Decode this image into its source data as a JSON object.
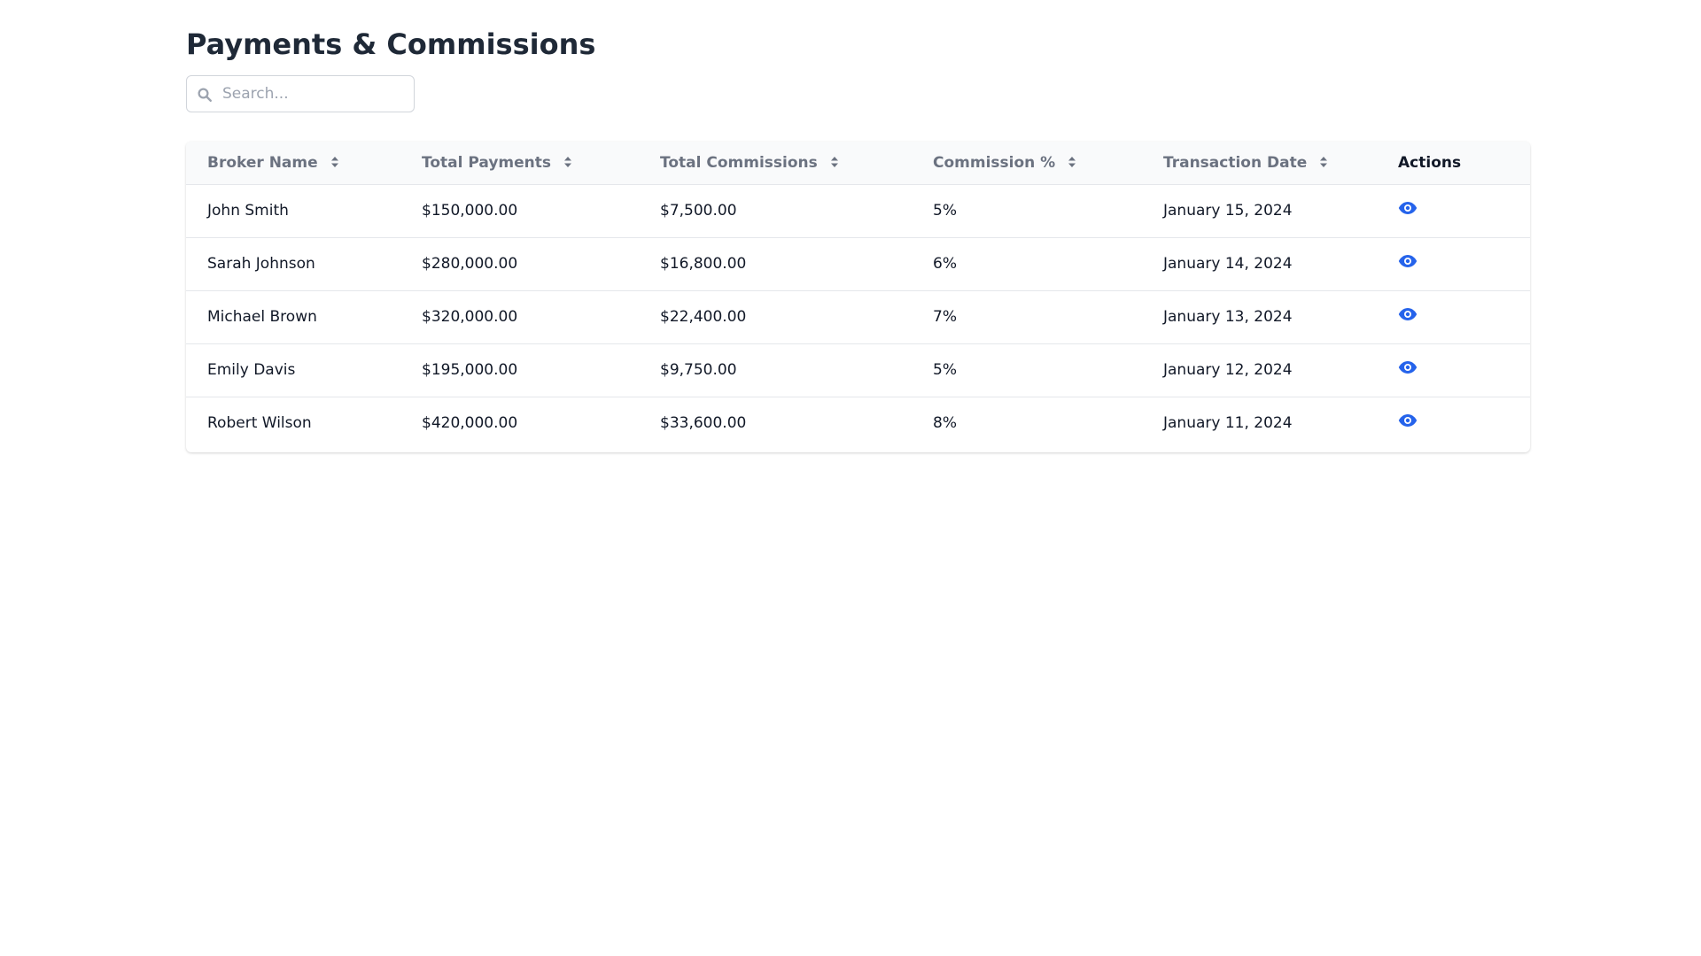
{
  "page": {
    "title": "Payments & Commissions"
  },
  "search": {
    "placeholder": "Search...",
    "value": "",
    "icon": "search-icon"
  },
  "table": {
    "columns": [
      {
        "label": "Broker Name",
        "sortable": true
      },
      {
        "label": "Total Payments",
        "sortable": true
      },
      {
        "label": "Total Commissions",
        "sortable": true
      },
      {
        "label": "Commission %",
        "sortable": true
      },
      {
        "label": "Transaction Date",
        "sortable": true
      },
      {
        "label": "Actions",
        "sortable": false
      }
    ],
    "rows": [
      {
        "broker_name": "John Smith",
        "total_payments": "$150,000.00",
        "total_commissions": "$7,500.00",
        "commission_pct": "5%",
        "transaction_date": "January 15, 2024",
        "action_icon": "eye-icon"
      },
      {
        "broker_name": "Sarah Johnson",
        "total_payments": "$280,000.00",
        "total_commissions": "$16,800.00",
        "commission_pct": "6%",
        "transaction_date": "January 14, 2024",
        "action_icon": "eye-icon"
      },
      {
        "broker_name": "Michael Brown",
        "total_payments": "$320,000.00",
        "total_commissions": "$22,400.00",
        "commission_pct": "7%",
        "transaction_date": "January 13, 2024",
        "action_icon": "eye-icon"
      },
      {
        "broker_name": "Emily Davis",
        "total_payments": "$195,000.00",
        "total_commissions": "$9,750.00",
        "commission_pct": "5%",
        "transaction_date": "January 12, 2024",
        "action_icon": "eye-icon"
      },
      {
        "broker_name": "Robert Wilson",
        "total_payments": "$420,000.00",
        "total_commissions": "$33,600.00",
        "commission_pct": "8%",
        "transaction_date": "January 11, 2024",
        "action_icon": "eye-icon"
      }
    ]
  },
  "colors": {
    "accent": "#2563eb",
    "title": "#1f2937",
    "header_text": "#6b7280",
    "header_bg": "#f9fafb",
    "border": "#e5e7eb"
  }
}
